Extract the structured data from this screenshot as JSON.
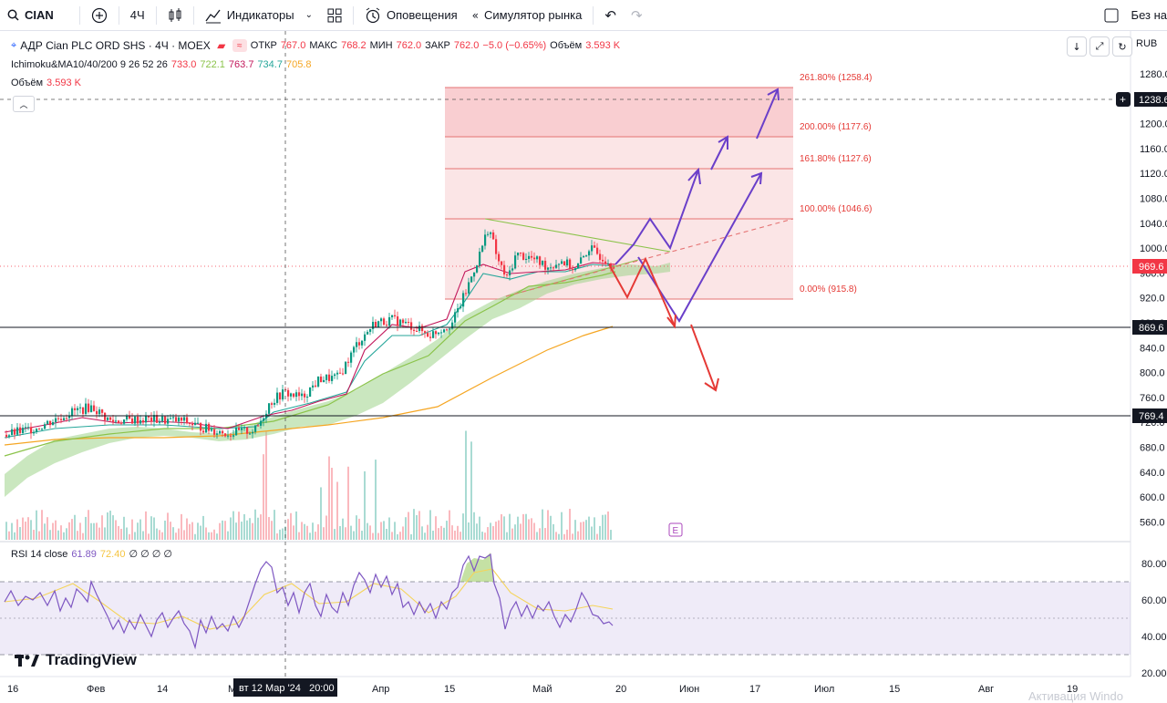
{
  "toolbar": {
    "symbol": "CIAN",
    "interval": "4Ч",
    "indicators_label": "Индикаторы",
    "alerts_label": "Оповещения",
    "replay_label": "Симулятор рынка",
    "right_label": "Без на"
  },
  "legend": {
    "title": "АДР Cian PLC ORD SHS · 4Ч · MOEX",
    "o_label": "ОТКР",
    "o_val": "767.0",
    "h_label": "МАКС",
    "h_val": "768.2",
    "l_label": "МИН",
    "l_val": "762.0",
    "c_label": "ЗАКР",
    "c_val": "762.0",
    "change": "−5.0 (−0.65%)",
    "vol_label": "Объём",
    "vol_val": "3.593 K",
    "ichimoku_label": "Ichimoku&MA10/40/200 9 26 52 26",
    "ichimoku_vals": [
      "733.0",
      "722.1",
      "763.7",
      "734.7",
      "705.8"
    ],
    "volume_label": "Объём",
    "volume_val": "3.593 K",
    "rsi_label": "RSI 14 close",
    "rsi_val": "61.89",
    "rsi_ma": "72.40",
    "rsi_extra": "∅ ∅ ∅ ∅"
  },
  "price_axis": {
    "currency": "RUB",
    "ticks": [
      "1280.0",
      "1240.0",
      "1200.0",
      "1160.0",
      "1120.0",
      "1080.0",
      "1040.0",
      "1000.0",
      "960.0",
      "920.0",
      "880.0",
      "840.0",
      "800.0",
      "760.0",
      "720.0",
      "680.0",
      "640.0",
      "600.0",
      "560.0"
    ],
    "current_price": "969.6",
    "crosshair_price": "1238.6",
    "level_1": "869.6",
    "level_2": "769.4"
  },
  "rsi_axis": {
    "ticks": [
      "80.00",
      "60.00",
      "40.00",
      "20.00"
    ]
  },
  "time_axis": {
    "labels": [
      "16",
      "Фев",
      "14",
      "М",
      "Апр",
      "15",
      "Май",
      "20",
      "Июн",
      "17",
      "Июл",
      "15",
      "Авг",
      "19"
    ],
    "crosshair_label": "вт 12 Мар '24   20:00"
  },
  "fib_levels": [
    {
      "label": "261.80% (1258.4)"
    },
    {
      "label": "200.00% (1177.6)"
    },
    {
      "label": "161.80% (1127.6)"
    },
    {
      "label": "100.00% (1046.6)"
    },
    {
      "label": "0.00% (915.8)"
    }
  ],
  "event_marker": "E",
  "logo_text": "TradingView",
  "watermark": "Активация Windo",
  "colors": {
    "up": "#089981",
    "down": "#f23645",
    "arrow_up": "#6a3fc9",
    "arrow_down": "#e53935",
    "fib": "#f7c5c8"
  }
}
